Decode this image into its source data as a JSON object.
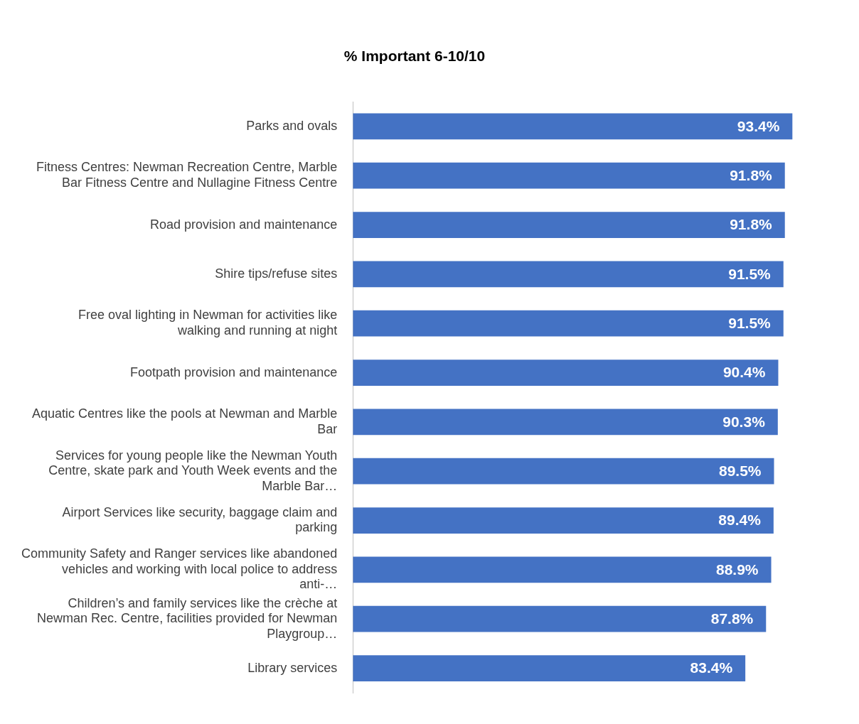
{
  "chart_data": {
    "type": "bar",
    "orientation": "horizontal",
    "title": "% Important 6-10/10",
    "categories": [
      "Parks and ovals",
      "Fitness Centres: Newman Recreation Centre, Marble Bar Fitness Centre and Nullagine Fitness Centre",
      "Road provision and maintenance",
      "Shire tips/refuse sites",
      "Free oval lighting in Newman for activities like walking and running at night",
      "Footpath provision and maintenance",
      "Aquatic Centres like the pools at Newman and Marble Bar",
      "Services for young people like the Newman Youth Centre, skate park and Youth Week events and the Marble Bar…",
      "Airport Services like security, baggage claim and parking",
      "Community Safety and Ranger services like abandoned vehicles and working with local police to address anti-…",
      "Children’s and family services like the crèche at Newman Rec. Centre, facilities provided for Newman Playgroup…",
      "Library services"
    ],
    "values": [
      93.4,
      91.8,
      91.8,
      91.5,
      91.5,
      90.4,
      90.3,
      89.5,
      89.4,
      88.9,
      87.8,
      83.4
    ],
    "value_labels": [
      "93.4%",
      "91.8%",
      "91.8%",
      "91.5%",
      "91.5%",
      "90.4%",
      "90.3%",
      "89.5%",
      "89.4%",
      "88.9%",
      "87.8%",
      "83.4%"
    ],
    "color": "#4472c4",
    "tick_labels": "y"
  }
}
